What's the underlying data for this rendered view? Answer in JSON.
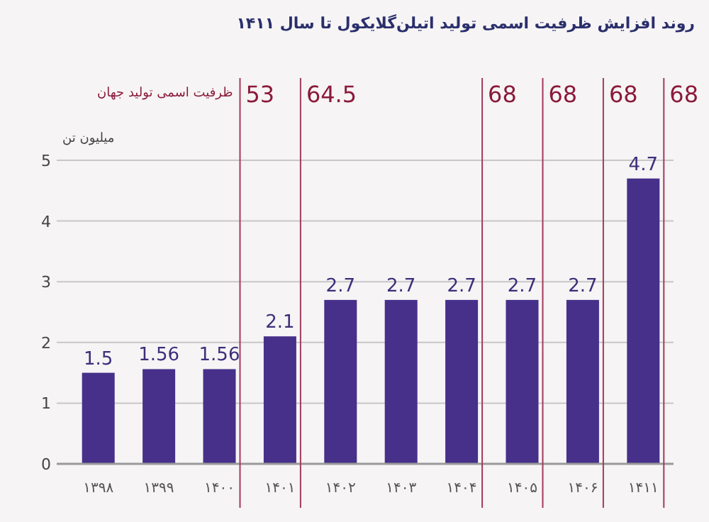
{
  "chart_data": {
    "type": "bar",
    "title": "روند افزایش ظرفیت اسمی تولید اتیلن‌گلایکول تا سال ۱۴۱۱",
    "ylabel": "میلیون تن",
    "categories": [
      "۱۳۹۸",
      "۱۳۹۹",
      "۱۴۰۰",
      "۱۴۰۱",
      "۱۴۰۲",
      "۱۴۰۳",
      "۱۴۰۴",
      "۱۴۰۵",
      "۱۴۰۶",
      "۱۴۱۱"
    ],
    "values": [
      1.5,
      1.56,
      1.56,
      2.1,
      2.7,
      2.7,
      2.7,
      2.7,
      2.7,
      4.7
    ],
    "color": "#46308a",
    "ylim": [
      0,
      5
    ],
    "yticks": [
      0,
      1,
      2,
      3,
      4,
      5
    ],
    "grid": "y",
    "data_labels": true,
    "ref_lines": [
      {
        "axis": "x",
        "value": "۱۴۰۰",
        "label": "53",
        "color": "#a33a5c"
      },
      {
        "axis": "x",
        "value": "۱۴۰۱",
        "label": "64.5",
        "color": "#a33a5c"
      },
      {
        "axis": "x",
        "value": "۱۴۰۴",
        "label": "68",
        "color": "#a33a5c"
      },
      {
        "axis": "x",
        "value": "۱۴۰۵",
        "label": "68",
        "color": "#a33a5c"
      },
      {
        "axis": "x",
        "value": "۱۴۰۶",
        "label": "68",
        "color": "#a33a5c"
      },
      {
        "axis": "x",
        "value": "۱۴۱۱",
        "label": "68",
        "color": "#a33a5c"
      }
    ],
    "annotations": [
      "ظرفیت اسمی تولید جهان"
    ]
  }
}
